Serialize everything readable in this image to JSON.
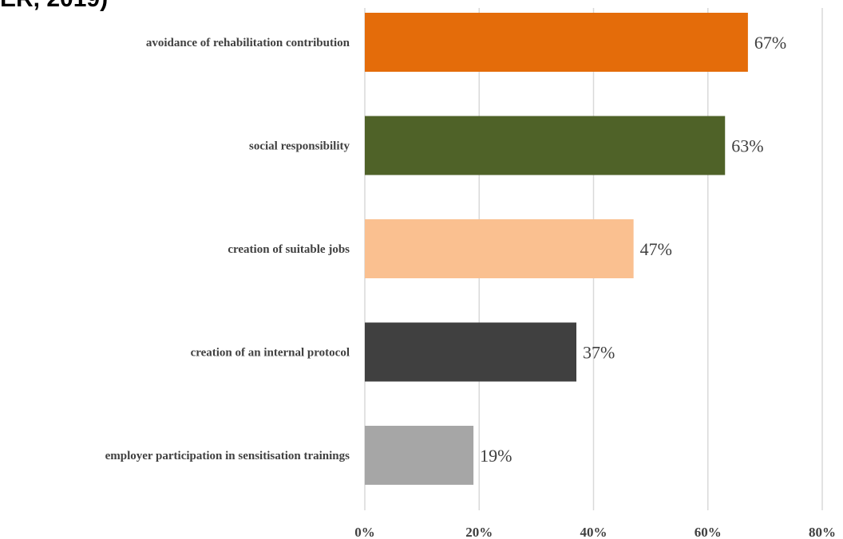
{
  "title_fragment": "ER, 2019)",
  "chart_data": {
    "type": "bar",
    "orientation": "horizontal",
    "categories": [
      "avoidance of rehabilitation contribution",
      "social responsibility",
      "creation of suitable jobs",
      "creation of an internal protocol",
      "employer participation in sensitisation trainings"
    ],
    "values": [
      67,
      63,
      47,
      37,
      19
    ],
    "value_labels": [
      "67%",
      "63%",
      "47%",
      "37%",
      "19%"
    ],
    "bar_colors": [
      "#E46C0A",
      "#4F6228",
      "#FAC090",
      "#404040",
      "#A6A6A6"
    ],
    "xlim": [
      0,
      80
    ],
    "x_ticks": [
      0,
      20,
      40,
      60,
      80
    ],
    "x_tick_labels": [
      "0%",
      "20%",
      "40%",
      "60%",
      "80%"
    ],
    "grid": "vertical",
    "legend": "none",
    "title": "",
    "xlabel": "",
    "ylabel": ""
  }
}
